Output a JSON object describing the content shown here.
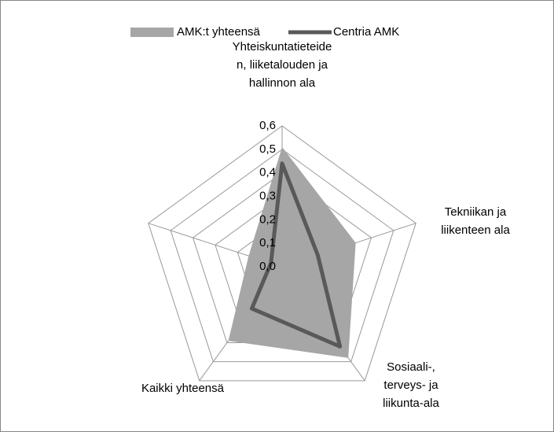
{
  "chart_data": {
    "type": "radar",
    "categories": [
      "Yhteiskuntatieteiden, liiketalouden ja hallinnon ala",
      "Tekniikan ja liikenteen ala",
      "Sosiaali-, terveys- ja liikunta-ala",
      "Kaikki yhteensä",
      null
    ],
    "series": [
      {
        "name": "AMK:t yhteensä",
        "color": "#a6a6a6",
        "values": [
          0.51,
          0.33,
          0.48,
          0.39,
          0.15
        ]
      },
      {
        "name": "Centria AMK",
        "color": "#595959",
        "values": [
          0.44,
          0.16,
          0.42,
          0.22,
          0.05
        ]
      }
    ],
    "rlim": [
      0,
      0.6
    ],
    "rticks": [
      {
        "value": 0,
        "label": "0,0"
      },
      {
        "value": 0.1,
        "label": "0,1"
      },
      {
        "value": 0.2,
        "label": "0,2"
      },
      {
        "value": 0.3,
        "label": "0,3"
      },
      {
        "value": 0.4,
        "label": "0,4"
      },
      {
        "value": 0.5,
        "label": "0,5"
      },
      {
        "value": 0.6,
        "label": "0,6"
      }
    ],
    "legend": "top",
    "grid": true
  }
}
